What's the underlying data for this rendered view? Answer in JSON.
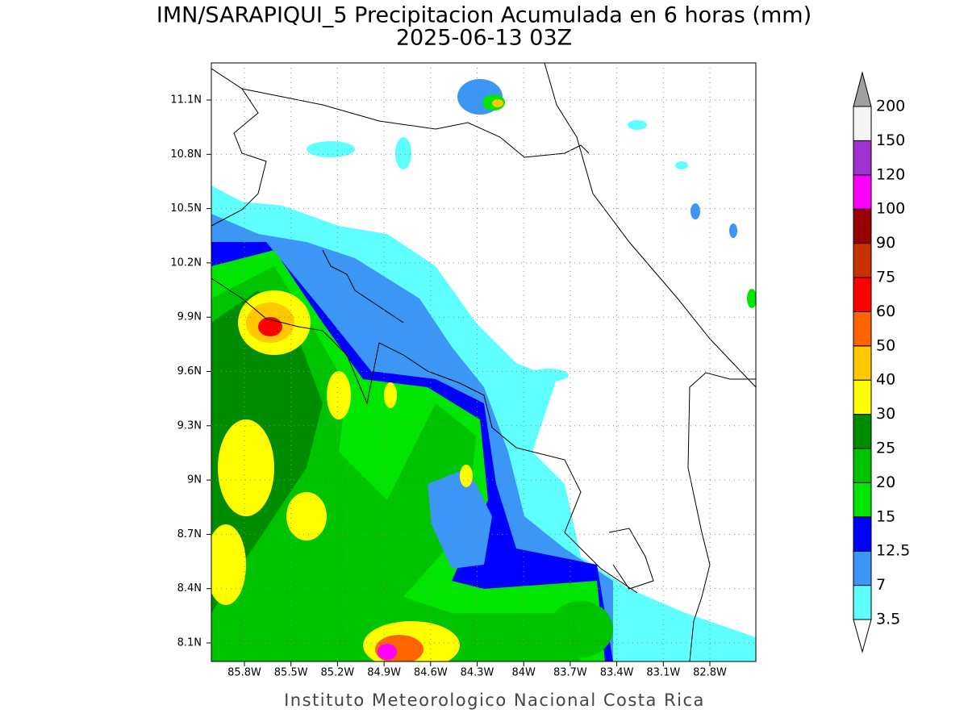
{
  "map": {
    "title": "IMN/SARAPIQUI_5 Precipitacion Acumulada en 6 horas (mm)",
    "subtitle": "2025-06-13 03Z",
    "xticks": [
      "85.8W",
      "85.5W",
      "85.2W",
      "84.9W",
      "84.6W",
      "84.3W",
      "84W",
      "83.7W",
      "83.4W",
      "83.1W",
      "82.8W"
    ],
    "yticks": [
      "11.1N",
      "10.8N",
      "10.5N",
      "10.2N",
      "9.9N",
      "9.6N",
      "9.3N",
      "9N",
      "8.7N",
      "8.4N",
      "8.1N"
    ],
    "colorbar": {
      "levels": [
        3.5,
        7,
        12.5,
        15,
        20,
        25,
        30,
        40,
        50,
        60,
        75,
        90,
        100,
        120,
        150,
        200
      ],
      "colors": [
        "#5fffff",
        "#3c96f5",
        "#0000ff",
        "#00e600",
        "#00c300",
        "#008c00",
        "#ffff00",
        "#ffc800",
        "#ff6400",
        "#ff0000",
        "#c83200",
        "#960000",
        "#ff00ff",
        "#a032d2",
        "#f5f5f5"
      ]
    },
    "footer": "Instituto Meteorologico Nacional Costa Rica"
  }
}
